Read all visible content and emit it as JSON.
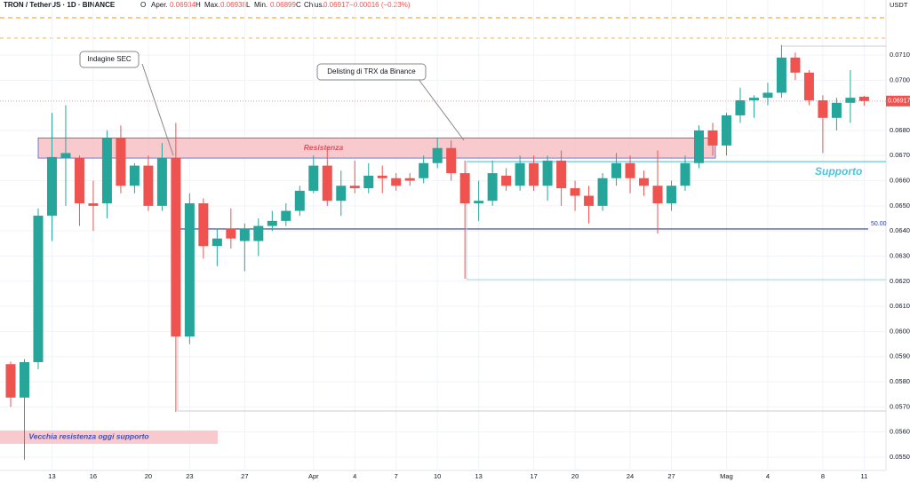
{
  "chart_data": {
    "type": "candlestick",
    "header": {
      "symbol": "TRON / TetherUS · 1D · BINANCE",
      "open_label": "O",
      "open_name": "Aper.",
      "open": "0.06934",
      "high_label": "H",
      "high_name": "Max.",
      "high": "0.06938",
      "low_label": "L",
      "low_name": "Min.",
      "low": "0.06899",
      "close_label": "C",
      "close_name": "Chius.",
      "close": "0.06917",
      "change": "−0.00016 (−0.23%)"
    },
    "currency": "USDT",
    "categories": [
      null,
      null,
      null,
      "13",
      null,
      null,
      "16",
      null,
      null,
      null,
      "20",
      null,
      null,
      "23",
      null,
      null,
      null,
      "27",
      null,
      null,
      null,
      null,
      "Apr",
      null,
      null,
      "4",
      null,
      null,
      "7",
      null,
      null,
      "10",
      null,
      null,
      "13",
      null,
      null,
      null,
      "17",
      null,
      null,
      "20",
      null,
      null,
      null,
      "24",
      null,
      null,
      "27",
      null,
      null,
      null,
      "Mag",
      null,
      null,
      "4",
      null,
      null,
      null,
      "8",
      null,
      null,
      "11"
    ],
    "open": [
      0.0587,
      0.05737,
      0.05878,
      0.06461,
      0.0669,
      0.0669,
      0.0651,
      0.0651,
      0.0677,
      0.0658,
      0.0666,
      0.065,
      0.0669,
      0.0598,
      0.0651,
      0.0634,
      0.0641,
      0.0636,
      0.0636,
      0.0642,
      0.0644,
      0.0648,
      0.0656,
      0.0666,
      0.0652,
      0.0658,
      0.0657,
      0.0662,
      0.0661,
      0.0661,
      0.0661,
      0.0667,
      0.0673,
      0.0663,
      0.0651,
      0.0652,
      0.0662,
      0.0658,
      0.0667,
      0.0658,
      0.0668,
      0.0657,
      0.0654,
      0.065,
      0.0661,
      0.0667,
      0.0661,
      0.0658,
      0.0651,
      0.0658,
      0.0667,
      0.068,
      0.0674,
      0.0686,
      0.0692,
      0.0693,
      0.0695,
      0.0709,
      0.0703,
      0.0692,
      0.0685,
      0.0691,
      0.06934
    ],
    "high": [
      0.0588,
      0.0589,
      0.0649,
      0.0687,
      0.069,
      0.067,
      0.066,
      0.068,
      0.0682,
      0.0667,
      0.067,
      0.0675,
      0.0683,
      0.0655,
      0.0653,
      0.0641,
      0.0649,
      0.0643,
      0.0645,
      0.0648,
      0.0651,
      0.0658,
      0.067,
      0.0673,
      0.0664,
      0.0668,
      0.0667,
      0.0666,
      0.0663,
      0.0663,
      0.067,
      0.0677,
      0.0676,
      0.0668,
      0.066,
      0.0668,
      0.0665,
      0.067,
      0.067,
      0.067,
      0.0672,
      0.066,
      0.0658,
      0.0663,
      0.0671,
      0.067,
      0.0664,
      0.0672,
      0.066,
      0.067,
      0.0682,
      0.0683,
      0.0687,
      0.0697,
      0.0694,
      0.0699,
      0.0714,
      0.0711,
      0.0704,
      0.0694,
      0.0693,
      0.0704,
      0.06938
    ],
    "low": [
      0.057,
      0.0549,
      0.0585,
      0.0636,
      0.065,
      0.0642,
      0.064,
      0.0645,
      0.0655,
      0.0655,
      0.0648,
      0.0648,
      0.0568,
      0.0595,
      0.0629,
      0.0626,
      0.0633,
      0.0624,
      0.063,
      0.064,
      0.0642,
      0.0646,
      0.0655,
      0.065,
      0.0646,
      0.0655,
      0.0655,
      0.0655,
      0.0656,
      0.0658,
      0.0659,
      0.0665,
      0.066,
      0.0621,
      0.0644,
      0.065,
      0.0656,
      0.0656,
      0.0656,
      0.0652,
      0.065,
      0.0648,
      0.0643,
      0.0648,
      0.0658,
      0.0655,
      0.0654,
      0.0639,
      0.0648,
      0.0656,
      0.0665,
      0.067,
      0.067,
      0.0683,
      0.0685,
      0.069,
      0.0693,
      0.07,
      0.069,
      0.0671,
      0.068,
      0.0683,
      0.06899
    ],
    "close": [
      0.05737,
      0.05878,
      0.06461,
      0.06694,
      0.0671,
      0.0651,
      0.065,
      0.0677,
      0.0658,
      0.0666,
      0.065,
      0.0669,
      0.0598,
      0.0651,
      0.0634,
      0.0637,
      0.0637,
      0.0641,
      0.0642,
      0.0644,
      0.0648,
      0.0656,
      0.0666,
      0.0652,
      0.0658,
      0.0657,
      0.0662,
      0.0661,
      0.0658,
      0.066,
      0.0667,
      0.0673,
      0.0663,
      0.0651,
      0.0652,
      0.0663,
      0.0658,
      0.0667,
      0.0658,
      0.0668,
      0.0657,
      0.0654,
      0.065,
      0.0661,
      0.0667,
      0.0661,
      0.0658,
      0.0651,
      0.0658,
      0.0667,
      0.068,
      0.0674,
      0.0686,
      0.0692,
      0.0693,
      0.0695,
      0.0709,
      0.0703,
      0.0692,
      0.0685,
      0.0691,
      0.0693,
      0.06917
    ],
    "up_color": "#26a69a",
    "down_color": "#ef5350",
    "ylim": [
      0.05447,
      0.07319
    ],
    "yticks": [
      {
        "value": 0.055,
        "label": "0.05500"
      },
      {
        "value": 0.056,
        "label": "0.05600"
      },
      {
        "value": 0.057,
        "label": "0.05700"
      },
      {
        "value": 0.058,
        "label": "0.05800"
      },
      {
        "value": 0.059,
        "label": "0.05900"
      },
      {
        "value": 0.06,
        "label": "0.06000"
      },
      {
        "value": 0.061,
        "label": "0.06100"
      },
      {
        "value": 0.062,
        "label": "0.06200"
      },
      {
        "value": 0.063,
        "label": "0.06300"
      },
      {
        "value": 0.064,
        "label": "0.06400"
      },
      {
        "value": 0.065,
        "label": "0.06500"
      },
      {
        "value": 0.066,
        "label": "0.06600"
      },
      {
        "value": 0.067,
        "label": "0.06700"
      },
      {
        "value": 0.068,
        "label": "0.06800"
      },
      {
        "value": 0.07,
        "label": "0.07000"
      },
      {
        "value": 0.071,
        "label": "0.07100"
      }
    ],
    "last_price": {
      "value": 0.06917,
      "label": "0.06917",
      "color": "#ef5350"
    },
    "zones": [
      {
        "name": "Resistenza",
        "low": 0.0669,
        "high": 0.0677,
        "color": "#f8c4c8",
        "text_color": "#e0505e"
      },
      {
        "name": "Vecchia resistenza oggi supporto",
        "low": 0.05553,
        "high": 0.05606,
        "color": "#f8c4c8",
        "text_color": "#3b4fbf"
      }
    ],
    "levels": [
      {
        "name": "Supporto",
        "value": 0.06676,
        "color": "#4fc3d9"
      },
      {
        "name": "50.00",
        "value": 0.06408,
        "color": "#2a3fb0"
      }
    ],
    "callouts": [
      "Indagine SEC",
      "Delisting di TRX da Binance"
    ]
  }
}
